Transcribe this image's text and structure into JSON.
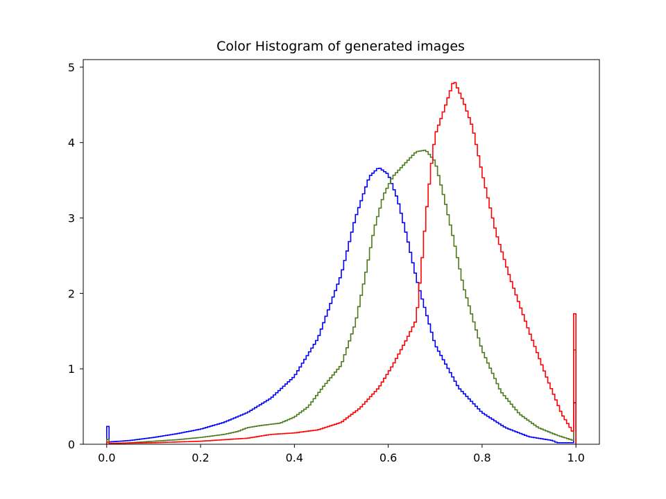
{
  "chart_data": {
    "type": "line",
    "style": "step",
    "title": "Color Histogram of generated images",
    "xlabel": "",
    "ylabel": "",
    "xlim": [
      -0.05,
      1.05
    ],
    "ylim": [
      0,
      5.1
    ],
    "x_ticks": [
      "0.0",
      "0.2",
      "0.4",
      "0.6",
      "0.8",
      "1.0"
    ],
    "y_ticks": [
      "0",
      "1",
      "2",
      "3",
      "4",
      "5"
    ],
    "grid": false,
    "series": [
      {
        "color": "#0000ff",
        "points": [
          [
            0.0,
            0.58
          ],
          [
            0.004,
            0.03
          ],
          [
            0.05,
            0.05
          ],
          [
            0.1,
            0.09
          ],
          [
            0.15,
            0.14
          ],
          [
            0.2,
            0.2
          ],
          [
            0.25,
            0.29
          ],
          [
            0.3,
            0.42
          ],
          [
            0.35,
            0.61
          ],
          [
            0.4,
            0.9
          ],
          [
            0.45,
            1.4
          ],
          [
            0.5,
            2.25
          ],
          [
            0.53,
            3.0
          ],
          [
            0.56,
            3.55
          ],
          [
            0.58,
            3.67
          ],
          [
            0.6,
            3.58
          ],
          [
            0.62,
            3.25
          ],
          [
            0.64,
            2.75
          ],
          [
            0.66,
            2.2
          ],
          [
            0.7,
            1.32
          ],
          [
            0.75,
            0.75
          ],
          [
            0.8,
            0.42
          ],
          [
            0.85,
            0.22
          ],
          [
            0.9,
            0.1
          ],
          [
            0.95,
            0.05
          ],
          [
            0.96,
            0.02
          ],
          [
            0.995,
            0.02
          ],
          [
            0.996,
            0.55
          ]
        ]
      },
      {
        "color": "#4a7a1a",
        "points": [
          [
            0.0,
            0.15
          ],
          [
            0.004,
            0.01
          ],
          [
            0.05,
            0.02
          ],
          [
            0.1,
            0.04
          ],
          [
            0.15,
            0.06
          ],
          [
            0.2,
            0.09
          ],
          [
            0.25,
            0.13
          ],
          [
            0.28,
            0.17
          ],
          [
            0.3,
            0.22
          ],
          [
            0.33,
            0.25
          ],
          [
            0.37,
            0.28
          ],
          [
            0.4,
            0.36
          ],
          [
            0.43,
            0.5
          ],
          [
            0.46,
            0.75
          ],
          [
            0.5,
            1.05
          ],
          [
            0.53,
            1.6
          ],
          [
            0.55,
            2.2
          ],
          [
            0.57,
            2.85
          ],
          [
            0.59,
            3.3
          ],
          [
            0.61,
            3.55
          ],
          [
            0.64,
            3.75
          ],
          [
            0.66,
            3.88
          ],
          [
            0.68,
            3.9
          ],
          [
            0.7,
            3.75
          ],
          [
            0.72,
            3.25
          ],
          [
            0.74,
            2.7
          ],
          [
            0.76,
            2.1
          ],
          [
            0.8,
            1.25
          ],
          [
            0.84,
            0.7
          ],
          [
            0.88,
            0.4
          ],
          [
            0.92,
            0.22
          ],
          [
            0.96,
            0.12
          ],
          [
            0.995,
            0.05
          ],
          [
            0.996,
            1.25
          ]
        ]
      },
      {
        "color": "#ff0000",
        "points": [
          [
            0.0,
            0.06
          ],
          [
            0.004,
            0.01
          ],
          [
            0.1,
            0.02
          ],
          [
            0.2,
            0.04
          ],
          [
            0.3,
            0.08
          ],
          [
            0.35,
            0.13
          ],
          [
            0.4,
            0.15
          ],
          [
            0.45,
            0.19
          ],
          [
            0.5,
            0.29
          ],
          [
            0.54,
            0.48
          ],
          [
            0.58,
            0.75
          ],
          [
            0.61,
            1.05
          ],
          [
            0.64,
            1.4
          ],
          [
            0.66,
            1.65
          ],
          [
            0.67,
            2.3
          ],
          [
            0.68,
            3.0
          ],
          [
            0.69,
            3.6
          ],
          [
            0.7,
            4.1
          ],
          [
            0.72,
            4.45
          ],
          [
            0.74,
            4.83
          ],
          [
            0.76,
            4.55
          ],
          [
            0.78,
            4.2
          ],
          [
            0.8,
            3.6
          ],
          [
            0.83,
            2.8
          ],
          [
            0.86,
            2.2
          ],
          [
            0.9,
            1.5
          ],
          [
            0.94,
            0.85
          ],
          [
            0.97,
            0.4
          ],
          [
            0.995,
            0.15
          ],
          [
            0.996,
            1.73
          ]
        ]
      }
    ]
  }
}
